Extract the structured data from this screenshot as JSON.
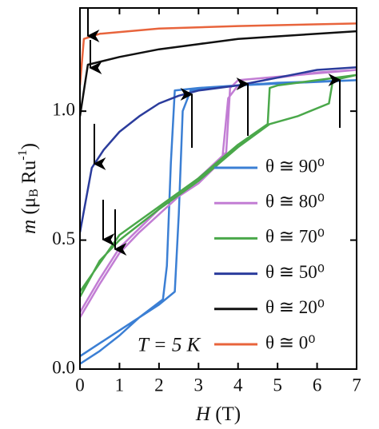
{
  "chart_data": {
    "type": "line",
    "xlabel": [
      "H",
      " (T)"
    ],
    "ylabel": [
      "m",
      " (μ",
      "B",
      " Ru",
      "-1",
      ")"
    ],
    "annotation": "T = 5 K",
    "xlim": [
      0,
      7
    ],
    "xticks": [
      0,
      1,
      2,
      3,
      4,
      5,
      6,
      7
    ],
    "ylim": [
      0,
      1.4
    ],
    "yticks": [
      {
        "value": 0,
        "label": "0.0"
      },
      0.5,
      {
        "value": 1,
        "label": "1.0"
      }
    ],
    "series": [
      {
        "name": "θ ≅ 90⁰",
        "color": "#3b7fd4",
        "x": [
          0,
          0.5,
          1,
          1.5,
          2,
          2.4,
          2.5,
          2.6,
          2.8,
          4,
          5.5,
          7,
          5,
          3,
          2.4,
          2.3,
          2.2,
          2.1,
          1.5,
          1,
          0.5,
          0
        ],
        "values": [
          0.05,
          0.1,
          0.15,
          0.2,
          0.25,
          0.3,
          0.6,
          1.0,
          1.08,
          1.1,
          1.11,
          1.12,
          1.11,
          1.09,
          1.08,
          0.8,
          0.4,
          0.27,
          0.2,
          0.13,
          0.07,
          0.02
        ]
      },
      {
        "name": "θ ≅ 80⁰",
        "color": "#c27dd4",
        "x": [
          0,
          0.5,
          1,
          1.5,
          2,
          2.5,
          3,
          3.6,
          3.75,
          4,
          5,
          6,
          7,
          4,
          3.8,
          3.7,
          3,
          2,
          1,
          0.5,
          0
        ],
        "values": [
          0.2,
          0.33,
          0.45,
          0.53,
          0.6,
          0.67,
          0.72,
          0.81,
          1.05,
          1.1,
          1.13,
          1.15,
          1.16,
          1.12,
          1.09,
          0.84,
          0.74,
          0.62,
          0.47,
          0.35,
          0.22
        ]
      },
      {
        "name": "θ ≅ 70⁰",
        "color": "#4aa84a",
        "x": [
          0,
          0.5,
          1,
          2,
          3,
          4,
          4.8,
          5.5,
          6.3,
          6.4,
          7,
          5,
          4.8,
          4.75,
          4,
          3,
          2,
          1,
          0
        ],
        "values": [
          0.28,
          0.42,
          0.5,
          0.62,
          0.73,
          0.86,
          0.95,
          0.98,
          1.03,
          1.12,
          1.14,
          1.1,
          1.09,
          0.95,
          0.87,
          0.74,
          0.63,
          0.52,
          0.3
        ]
      },
      {
        "name": "θ ≅ 50⁰",
        "color": "#2b3c9c",
        "x": [
          0,
          0.3,
          0.6,
          1,
          1.5,
          2,
          2.5,
          3,
          4,
          5,
          6,
          7
        ],
        "values": [
          0.53,
          0.78,
          0.85,
          0.92,
          0.98,
          1.03,
          1.06,
          1.08,
          1.1,
          1.13,
          1.16,
          1.17
        ]
      },
      {
        "name": "θ ≅ 20⁰",
        "color": "#111111",
        "x": [
          0,
          0.2,
          1,
          2,
          3,
          4,
          5,
          6,
          7
        ],
        "values": [
          0.98,
          1.18,
          1.21,
          1.24,
          1.26,
          1.28,
          1.29,
          1.3,
          1.31
        ]
      },
      {
        "name": "θ ≅ 0⁰",
        "color": "#e8643c",
        "x": [
          0,
          0.1,
          0.5,
          2,
          4,
          7
        ],
        "values": [
          1.1,
          1.28,
          1.3,
          1.32,
          1.33,
          1.34
        ]
      }
    ]
  }
}
